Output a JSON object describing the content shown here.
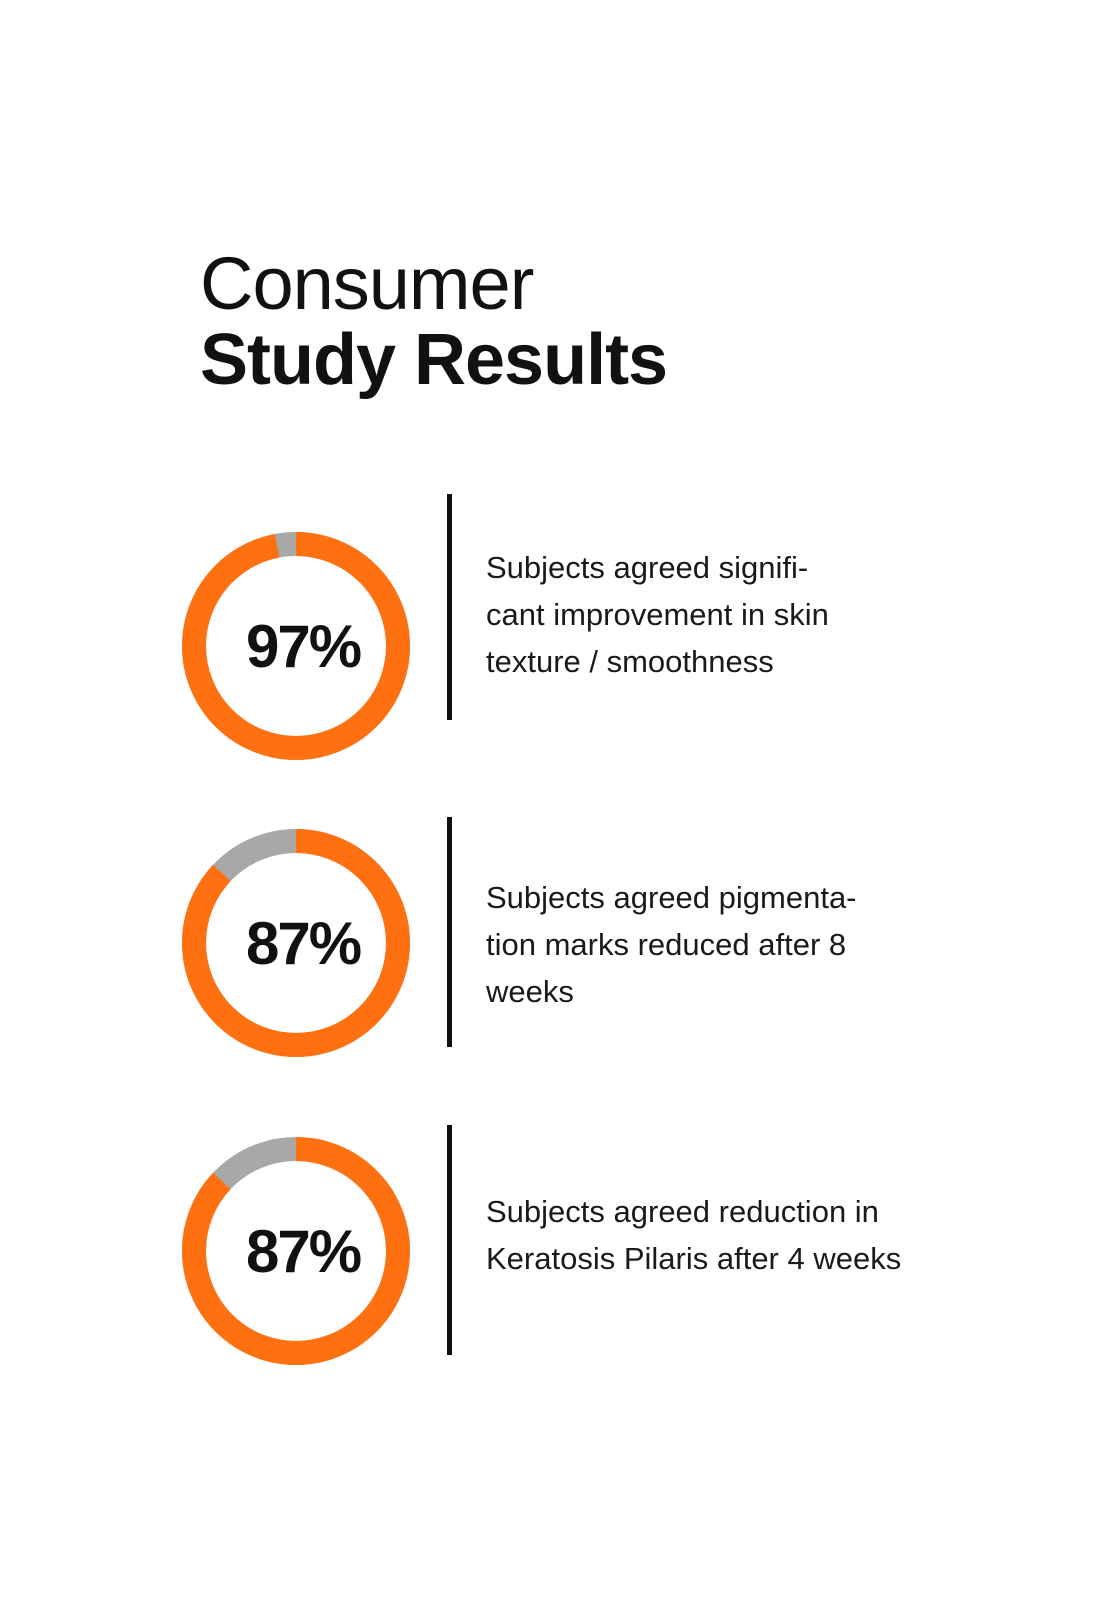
{
  "title": {
    "line1": "Consumer",
    "line2": "Study Results"
  },
  "colors": {
    "accent": "#FF7010",
    "track": "#A8A8A8",
    "text": "#111111"
  },
  "chart_data": [
    {
      "type": "pie",
      "value": 97,
      "label": "97%",
      "description_lines": [
        "Subjects agreed signifi-",
        "cant improvement in skin",
        "texture / smoothness"
      ]
    },
    {
      "type": "pie",
      "value": 87,
      "label": "87%",
      "description_lines": [
        "Subjects agreed pigmenta-",
        "tion marks reduced after 8",
        "weeks"
      ]
    },
    {
      "type": "pie",
      "value": 87,
      "label": "87%",
      "description_lines": [
        "Subjects agreed reduction in",
        "Keratosis Pilaris after 4 weeks"
      ]
    }
  ]
}
